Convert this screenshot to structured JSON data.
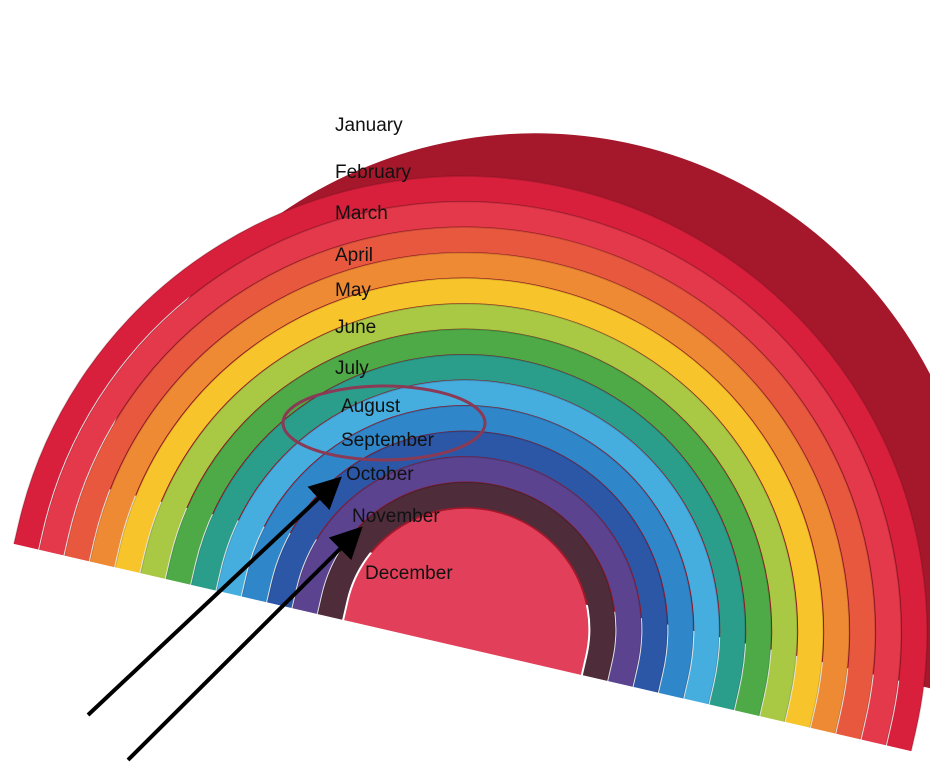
{
  "labels": [
    "January",
    "February",
    "March",
    "April",
    "May",
    "June",
    "July",
    "August",
    "September",
    "October",
    "November",
    "December"
  ]
}
